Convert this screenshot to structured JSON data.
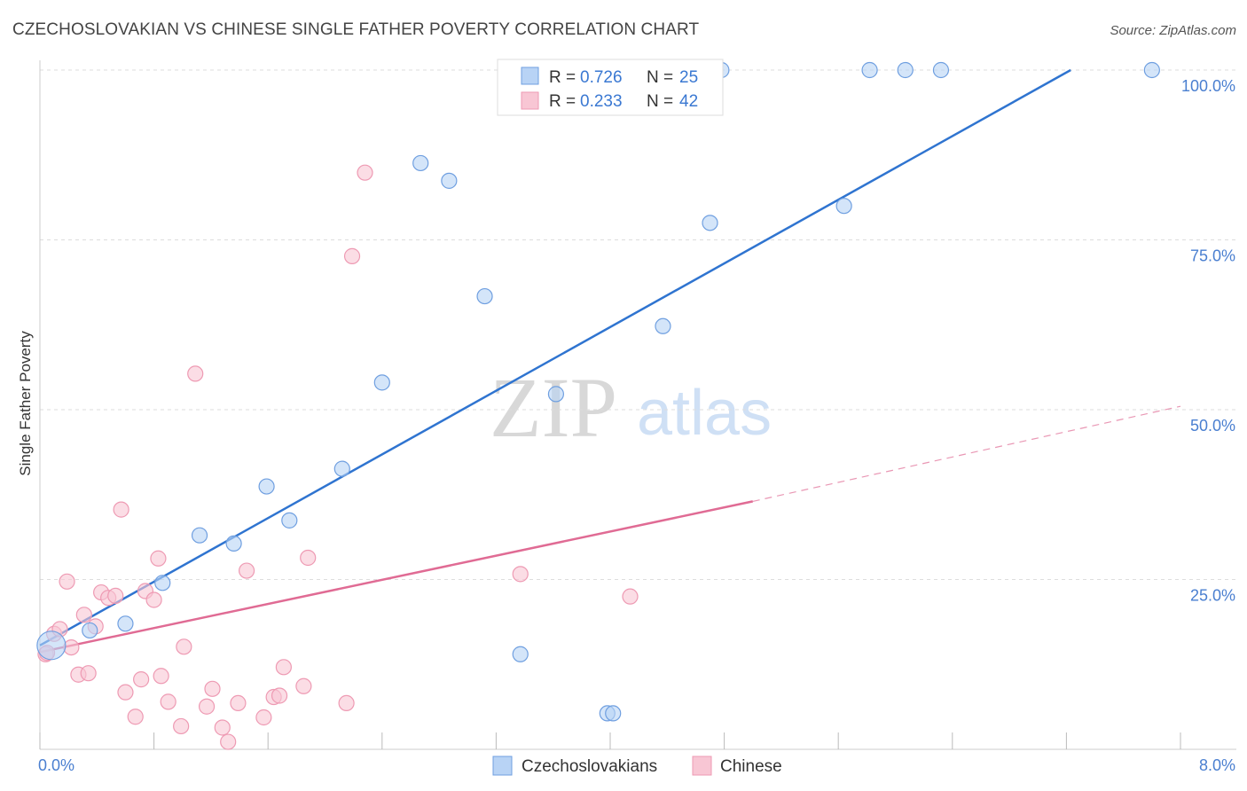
{
  "title": "CZECHOSLOVAKIAN VS CHINESE SINGLE FATHER POVERTY CORRELATION CHART",
  "source": "Source: ZipAtlas.com",
  "watermark": {
    "part1": "ZIP",
    "part2": "atlas"
  },
  "colors": {
    "blue_fill": "#b8d3f5",
    "blue_stroke": "#6f9fe0",
    "blue_line": "#2f74d0",
    "pink_fill": "#f8c6d4",
    "pink_stroke": "#ee9ab3",
    "pink_line": "#e06b94",
    "grid": "#dddddd",
    "tick_label": "#4a7fd0"
  },
  "legend": {
    "rows": [
      {
        "r_label": "R = ",
        "r_value": "0.726",
        "n_label": "N = ",
        "n_value": "25"
      },
      {
        "r_label": "R = ",
        "r_value": "0.233",
        "n_label": "N = ",
        "n_value": "42"
      }
    ]
  },
  "bottom_legend": [
    "Czechoslovakians",
    "Chinese"
  ],
  "chart_data": {
    "type": "scatter",
    "title": "CZECHOSLOVAKIAN VS CHINESE SINGLE FATHER POVERTY CORRELATION CHART",
    "xlabel": "",
    "ylabel": "Single Father Poverty",
    "xlim": [
      0,
      8.0
    ],
    "ylim": [
      0,
      100
    ],
    "x_tick_labels": {
      "left": "0.0%",
      "right": "8.0%"
    },
    "y_ticks": [
      {
        "value": 25,
        "label": "25.0%"
      },
      {
        "value": 50,
        "label": "50.0%"
      },
      {
        "value": 75,
        "label": "75.0%"
      },
      {
        "value": 100,
        "label": "100.0%"
      }
    ],
    "x_tick_marks": [
      0,
      0.8,
      1.6,
      2.4,
      3.2,
      4.0,
      4.8,
      5.6,
      6.4,
      7.2,
      8.0
    ],
    "grid": true,
    "series": [
      {
        "name": "Czechoslovakians",
        "r": 0.726,
        "n": 25,
        "trend": {
          "x0": 0.0,
          "y0": 15.3,
          "x1": 7.23,
          "y1": 100.0,
          "dashed_to": null
        },
        "points": [
          {
            "x": 0.08,
            "y": 15.3,
            "big": true
          },
          {
            "x": 0.35,
            "y": 17.5
          },
          {
            "x": 0.6,
            "y": 18.5
          },
          {
            "x": 0.86,
            "y": 24.5
          },
          {
            "x": 1.12,
            "y": 31.5
          },
          {
            "x": 1.36,
            "y": 30.3
          },
          {
            "x": 1.59,
            "y": 38.7
          },
          {
            "x": 1.75,
            "y": 33.7
          },
          {
            "x": 2.12,
            "y": 41.3
          },
          {
            "x": 2.4,
            "y": 54.0
          },
          {
            "x": 2.67,
            "y": 86.3
          },
          {
            "x": 2.87,
            "y": 83.7
          },
          {
            "x": 3.12,
            "y": 66.7
          },
          {
            "x": 3.37,
            "y": 14.0
          },
          {
            "x": 3.62,
            "y": 52.3
          },
          {
            "x": 3.98,
            "y": 5.3
          },
          {
            "x": 4.02,
            "y": 5.3
          },
          {
            "x": 4.37,
            "y": 62.3
          },
          {
            "x": 4.7,
            "y": 77.5
          },
          {
            "x": 4.78,
            "y": 100.0
          },
          {
            "x": 5.64,
            "y": 80.0
          },
          {
            "x": 5.82,
            "y": 100.0
          },
          {
            "x": 6.07,
            "y": 100.0
          },
          {
            "x": 6.32,
            "y": 100.0
          },
          {
            "x": 7.8,
            "y": 100.0
          }
        ]
      },
      {
        "name": "Chinese",
        "r": 0.233,
        "n": 42,
        "trend": {
          "x0": 0.0,
          "y0": 14.3,
          "x1": 5.0,
          "y1": 36.5,
          "dashed_to": {
            "x": 8.0,
            "y": 50.5
          }
        },
        "points": [
          {
            "x": 0.04,
            "y": 14.0
          },
          {
            "x": 0.1,
            "y": 17.0
          },
          {
            "x": 0.14,
            "y": 17.7
          },
          {
            "x": 0.19,
            "y": 24.7
          },
          {
            "x": 0.22,
            "y": 15.0
          },
          {
            "x": 0.27,
            "y": 11.0
          },
          {
            "x": 0.31,
            "y": 19.8
          },
          {
            "x": 0.34,
            "y": 11.2
          },
          {
            "x": 0.39,
            "y": 18.1
          },
          {
            "x": 0.43,
            "y": 23.1
          },
          {
            "x": 0.48,
            "y": 22.3
          },
          {
            "x": 0.53,
            "y": 22.6
          },
          {
            "x": 0.57,
            "y": 35.3
          },
          {
            "x": 0.6,
            "y": 8.4
          },
          {
            "x": 0.67,
            "y": 4.8
          },
          {
            "x": 0.71,
            "y": 10.3
          },
          {
            "x": 0.74,
            "y": 23.3
          },
          {
            "x": 0.8,
            "y": 22.0
          },
          {
            "x": 0.83,
            "y": 28.1
          },
          {
            "x": 0.85,
            "y": 10.8
          },
          {
            "x": 0.9,
            "y": 7.0
          },
          {
            "x": 0.99,
            "y": 3.4
          },
          {
            "x": 1.01,
            "y": 15.1
          },
          {
            "x": 1.09,
            "y": 55.3
          },
          {
            "x": 1.17,
            "y": 6.3
          },
          {
            "x": 1.21,
            "y": 8.9
          },
          {
            "x": 1.28,
            "y": 3.2
          },
          {
            "x": 1.32,
            "y": 1.1
          },
          {
            "x": 1.39,
            "y": 6.8
          },
          {
            "x": 1.45,
            "y": 26.3
          },
          {
            "x": 1.57,
            "y": 4.7
          },
          {
            "x": 1.64,
            "y": 7.7
          },
          {
            "x": 1.68,
            "y": 7.9
          },
          {
            "x": 1.71,
            "y": 12.1
          },
          {
            "x": 1.85,
            "y": 9.3
          },
          {
            "x": 1.88,
            "y": 28.2
          },
          {
            "x": 2.15,
            "y": 6.8
          },
          {
            "x": 2.19,
            "y": 72.6
          },
          {
            "x": 2.28,
            "y": 84.9
          },
          {
            "x": 3.37,
            "y": 25.8
          },
          {
            "x": 4.14,
            "y": 22.5
          },
          {
            "x": 0.05,
            "y": 14.2
          }
        ]
      }
    ]
  }
}
